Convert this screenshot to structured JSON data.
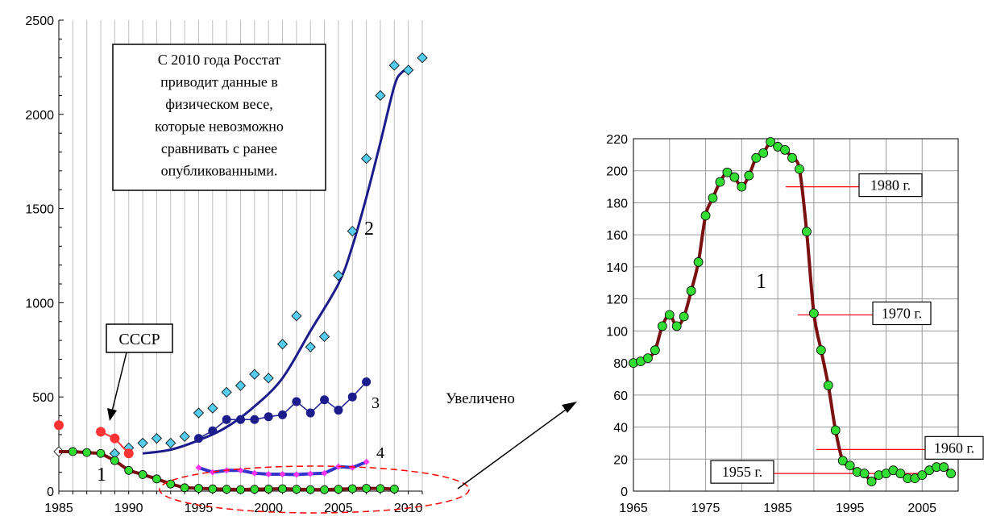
{
  "chart_data": [
    {
      "type": "line",
      "xlim": [
        1985,
        2011
      ],
      "ylim": [
        0,
        2500
      ],
      "x_ticks": [
        "1985",
        "1990",
        "1995",
        "2000",
        "2005",
        "2010"
      ],
      "y_ticks": [
        "0",
        "500",
        "1000",
        "1500",
        "2000",
        "2500"
      ],
      "grid": "vertical",
      "callout": "С 2010 года Росстат приводит данные в физическом весе, которые невозможно сравнивать с ранее опубликованными.",
      "ussr_label": "СССР",
      "zoom_label": "Увеличено",
      "series": [
        {
          "marker_label": "1",
          "color": "#7b1010",
          "marker_color": "#33dd33",
          "points": [
            [
              1985,
              210
            ],
            [
              1986,
              210
            ],
            [
              1987,
              205
            ],
            [
              1988,
              200
            ],
            [
              1989,
              162
            ],
            [
              1990,
              110
            ],
            [
              1991,
              88
            ],
            [
              1992,
              65
            ],
            [
              1993,
              38
            ],
            [
              1994,
              18
            ],
            [
              1995,
              15
            ],
            [
              1996,
              12
            ],
            [
              1997,
              10
            ],
            [
              1998,
              8
            ],
            [
              1999,
              10
            ],
            [
              2000,
              11
            ],
            [
              2001,
              13
            ],
            [
              2002,
              10
            ],
            [
              2003,
              8
            ],
            [
              2004,
              8
            ],
            [
              2005,
              10
            ],
            [
              2006,
              13
            ],
            [
              2007,
              15
            ],
            [
              2008,
              14
            ],
            [
              2009,
              11
            ]
          ]
        },
        {
          "marker_label": "2",
          "color": "#1c1c8c",
          "marker_color": "#55ccee",
          "points": [
            [
              1985,
              210
            ],
            [
              1989,
              200
            ],
            [
              1990,
              230
            ],
            [
              1991,
              255
            ],
            [
              1992,
              280
            ],
            [
              1993,
              255
            ],
            [
              1994,
              290
            ],
            [
              1995,
              415
            ],
            [
              1996,
              440
            ],
            [
              1997,
              525
            ],
            [
              1998,
              560
            ],
            [
              1999,
              620
            ],
            [
              2000,
              600
            ],
            [
              2001,
              780
            ],
            [
              2002,
              930
            ],
            [
              2003,
              765
            ],
            [
              2004,
              820
            ],
            [
              2005,
              1145
            ],
            [
              2006,
              1380
            ],
            [
              2007,
              1765
            ],
            [
              2008,
              2100
            ],
            [
              2009,
              2260
            ],
            [
              2010,
              2235
            ],
            [
              2011,
              2300
            ]
          ],
          "trend": [
            [
              1991,
              200
            ],
            [
              1993,
              220
            ],
            [
              1995,
              270
            ],
            [
              1997,
              340
            ],
            [
              1999,
              450
            ],
            [
              2001,
              600
            ],
            [
              2003,
              850
            ],
            [
              2005,
              1100
            ],
            [
              2006,
              1300
            ],
            [
              2007,
              1560
            ],
            [
              2008,
              1850
            ],
            [
              2009,
              2150
            ],
            [
              2009.5,
              2220
            ],
            [
              2010,
              2240
            ]
          ]
        },
        {
          "marker_label": "3",
          "color": "#1c1c8c",
          "marker_color": "#1c1c8c",
          "points": [
            [
              1995,
              280
            ],
            [
              1996,
              320
            ],
            [
              1997,
              380
            ],
            [
              1998,
              380
            ],
            [
              1999,
              380
            ],
            [
              2000,
              395
            ],
            [
              2001,
              405
            ],
            [
              2002,
              475
            ],
            [
              2003,
              415
            ],
            [
              2004,
              485
            ],
            [
              2005,
              430
            ],
            [
              2006,
              500
            ],
            [
              2007,
              580
            ]
          ]
        },
        {
          "marker_label": "4",
          "color": "#3333cc",
          "marker_color": "#ff33ee",
          "points": [
            [
              1995,
              125
            ],
            [
              1996,
              100
            ],
            [
              1997,
              110
            ],
            [
              1998,
              110
            ],
            [
              1999,
              95
            ],
            [
              2000,
              90
            ],
            [
              2001,
              90
            ],
            [
              2002,
              88
            ],
            [
              2003,
              92
            ],
            [
              2004,
              95
            ],
            [
              2005,
              130
            ],
            [
              2006,
              125
            ],
            [
              2007,
              155
            ]
          ]
        },
        {
          "name": "СССР",
          "color": "#ff3333",
          "marker_color": "#ff3333",
          "points": [
            [
              1985,
              350
            ],
            [
              1988,
              315
            ],
            [
              1989,
              280
            ],
            [
              1990,
              200
            ]
          ]
        }
      ]
    },
    {
      "type": "line",
      "xlim": [
        1965,
        2010
      ],
      "ylim": [
        0,
        220
      ],
      "x_ticks": [
        "1965",
        "1975",
        "1985",
        "1995",
        "2005"
      ],
      "y_ticks": [
        "0",
        "20",
        "40",
        "60",
        "80",
        "100",
        "120",
        "140",
        "160",
        "180",
        "200",
        "220"
      ],
      "grid": "both",
      "series_label": "1",
      "series": [
        {
          "color": "#7b1010",
          "marker_color": "#33dd33",
          "points": [
            [
              1965,
              80
            ],
            [
              1966,
              81
            ],
            [
              1967,
              83
            ],
            [
              1968,
              88
            ],
            [
              1969,
              103
            ],
            [
              1970,
              110
            ],
            [
              1971,
              103
            ],
            [
              1972,
              109
            ],
            [
              1973,
              125
            ],
            [
              1974,
              143
            ],
            [
              1975,
              172
            ],
            [
              1976,
              183
            ],
            [
              1977,
              193
            ],
            [
              1978,
              199
            ],
            [
              1979,
              196
            ],
            [
              1980,
              190
            ],
            [
              1981,
              197
            ],
            [
              1982,
              208
            ],
            [
              1983,
              211
            ],
            [
              1984,
              218
            ],
            [
              1985,
              215
            ],
            [
              1986,
              213
            ],
            [
              1987,
              208
            ],
            [
              1988,
              201
            ],
            [
              1989,
              162
            ],
            [
              1990,
              111
            ],
            [
              1991,
              88
            ],
            [
              1992,
              66
            ],
            [
              1993,
              38
            ],
            [
              1994,
              19
            ],
            [
              1995,
              16
            ],
            [
              1996,
              12
            ],
            [
              1997,
              11
            ],
            [
              1998,
              6
            ],
            [
              1999,
              10
            ],
            [
              2000,
              11
            ],
            [
              2001,
              13
            ],
            [
              2002,
              11
            ],
            [
              2003,
              8
            ],
            [
              2004,
              8
            ],
            [
              2005,
              10
            ],
            [
              2006,
              13
            ],
            [
              2007,
              15
            ],
            [
              2008,
              15
            ],
            [
              2009,
              11
            ]
          ]
        }
      ],
      "reference_lines": [
        {
          "label": "1980 г.",
          "y": 190
        },
        {
          "label": "1970 г.",
          "y": 110
        },
        {
          "label": "1960 г.",
          "y": 26
        },
        {
          "label": "1955 г.",
          "y": 11
        }
      ]
    }
  ]
}
